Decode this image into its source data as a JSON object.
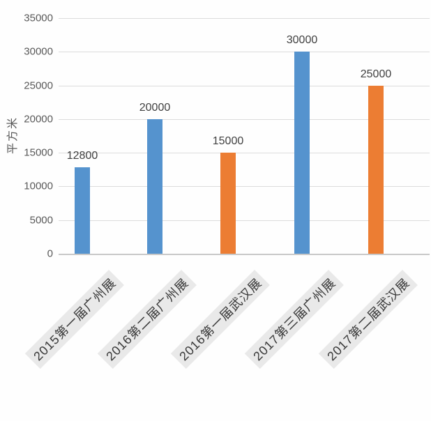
{
  "chart_data": {
    "type": "bar",
    "title": "",
    "categories": [
      "2015第一届广州展",
      "2016第二届广州展",
      "2016第一届武汉展",
      "2017第三届广州展",
      "2017第二届武汉展"
    ],
    "values": [
      12800,
      20000,
      15000,
      30000,
      25000
    ],
    "data_labels": [
      "12800",
      "20000",
      "15000",
      "30000",
      "25000"
    ],
    "bar_colors": [
      "#5593CE",
      "#5593CE",
      "#EC7D33",
      "#5593CE",
      "#EC7D33"
    ],
    "xlabel": "",
    "ylabel": "平方米",
    "ylim": [
      0,
      35000
    ],
    "yticks": [
      0,
      5000,
      10000,
      15000,
      20000,
      25000,
      30000,
      35000
    ],
    "grid": "horizontal-on",
    "legend_position": "none",
    "colors": {
      "series_blue": "#5593CE",
      "series_orange": "#EC7D33",
      "gridline": "#DCDCDC",
      "axis_line": "#C8C8C8",
      "tick_text": "#595959",
      "value_text": "#3F3F3F",
      "category_text": "#383838",
      "category_highlight": "#E9E9E9",
      "background": "#FFFFFF"
    }
  }
}
